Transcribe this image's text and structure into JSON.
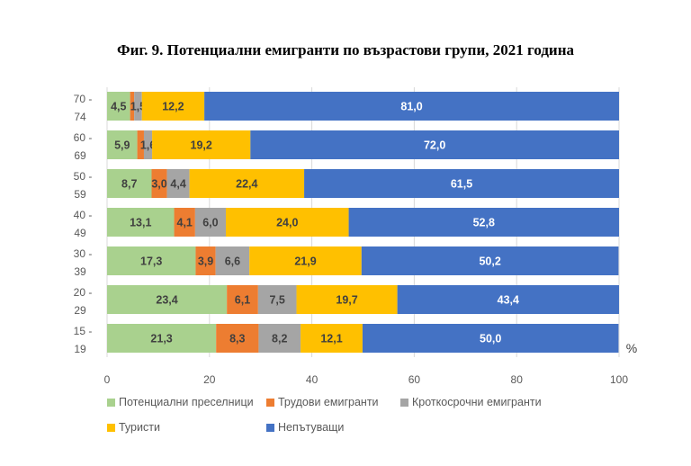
{
  "chart_data": {
    "type": "bar",
    "orientation": "horizontal",
    "stacked": true,
    "title": "Фиг. 9. Потенциални емигранти  по възрастови групи, 2021 година",
    "xlabel": "%",
    "xlim": [
      0,
      100
    ],
    "xticks": [
      "0",
      "20",
      "40",
      "60",
      "80",
      "100"
    ],
    "categories": [
      [
        "70 -",
        "74"
      ],
      [
        "60 -",
        "69"
      ],
      [
        "50 -",
        "59"
      ],
      [
        "40 -",
        "49"
      ],
      [
        "30 -",
        "39"
      ],
      [
        "20 -",
        "29"
      ],
      [
        "15 -",
        "19"
      ]
    ],
    "series": [
      {
        "name": "Потенциални преселници",
        "color": "#A9D18E",
        "values": [
          4.5,
          5.9,
          8.7,
          13.1,
          17.3,
          23.4,
          21.3
        ],
        "labels": [
          "4,5",
          "5,9",
          "8,7",
          "13,1",
          "17,3",
          "23,4",
          "21,3"
        ]
      },
      {
        "name": "Трудови емигранти",
        "color": "#ED7D31",
        "values": [
          0.8,
          1.3,
          3.0,
          4.1,
          3.9,
          6.1,
          8.3
        ],
        "labels": [
          null,
          null,
          "3,0",
          "4,1",
          "3,9",
          "6,1",
          "8,3"
        ]
      },
      {
        "name": "Кроткосрочни емигранти",
        "color": "#A5A5A5",
        "values": [
          1.5,
          1.6,
          4.4,
          6.0,
          6.6,
          7.5,
          8.2
        ],
        "labels": [
          "1,5",
          "1,6",
          "4,4",
          "6,0",
          "6,6",
          "7,5",
          "8,2"
        ]
      },
      {
        "name": "Туристи",
        "color": "#FFC000",
        "values": [
          12.2,
          19.2,
          22.4,
          24.0,
          21.9,
          19.7,
          12.1
        ],
        "labels": [
          "12,2",
          "19,2",
          "22,4",
          "24,0",
          "21,9",
          "19,7",
          "12,1"
        ]
      },
      {
        "name": "Непътуващи",
        "color": "#4472C4",
        "values": [
          81.0,
          72.0,
          61.5,
          52.8,
          50.2,
          43.4,
          50.0
        ],
        "labels": [
          "81,0",
          "72,0",
          "61,5",
          "52,8",
          "50,2",
          "43,4",
          "50,0"
        ]
      }
    ],
    "grid": true,
    "legend": "bottom"
  }
}
